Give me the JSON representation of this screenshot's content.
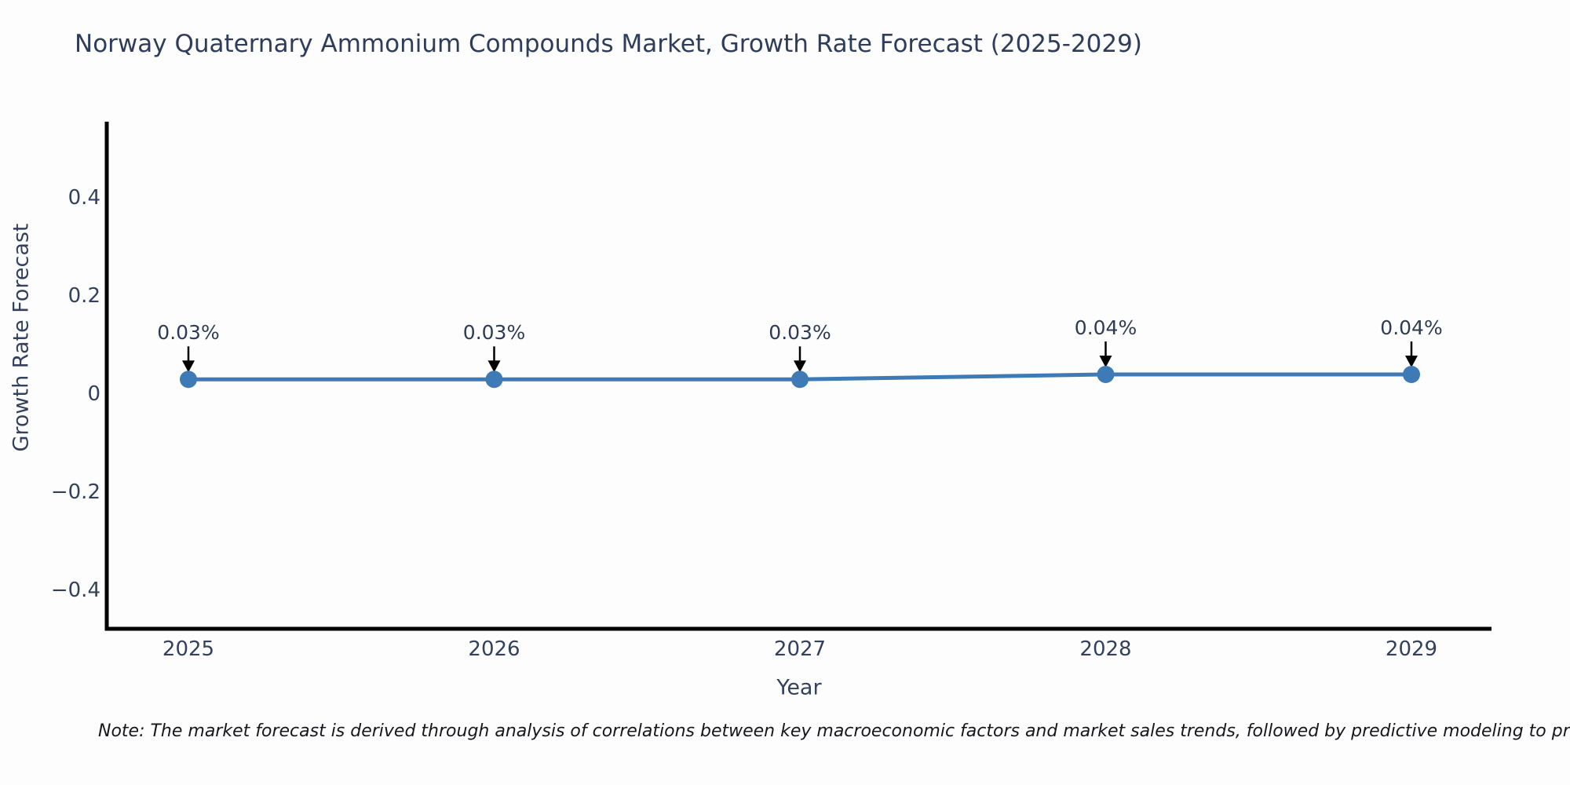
{
  "page": {
    "title": "Norway Quaternary Ammonium Compounds Market, Growth Rate Forecast (2025-2029)",
    "note": "Note: The market forecast is derived through analysis of correlations between key macroeconomic factors and market sales trends, followed by predictive modeling to project future sa"
  },
  "chart_data": {
    "type": "line",
    "title": "Norway Quaternary Ammonium Compounds Market, Growth Rate Forecast (2025-2029)",
    "xlabel": "Year",
    "ylabel": "Growth Rate Forecast",
    "x": [
      2025,
      2026,
      2027,
      2028,
      2029
    ],
    "series": [
      {
        "name": "Growth Rate Forecast",
        "values": [
          0.03,
          0.03,
          0.03,
          0.04,
          0.04
        ]
      }
    ],
    "point_labels": [
      "0.03%",
      "0.03%",
      "0.03%",
      "0.04%",
      "0.04%"
    ],
    "y_ticks": [
      0.4,
      0.2,
      0,
      -0.2,
      -0.4
    ],
    "ylim": [
      -0.48,
      0.56
    ],
    "grid": false,
    "legend_shown": false,
    "annotation_style": "value label with downward black arrow to each marker",
    "colors": {
      "line": "#3d7ab6",
      "marker": "#3d7ab6",
      "axis": "#000000",
      "arrow": "#000000",
      "text": "#2e3b55",
      "background": "#fdfdfd"
    }
  }
}
